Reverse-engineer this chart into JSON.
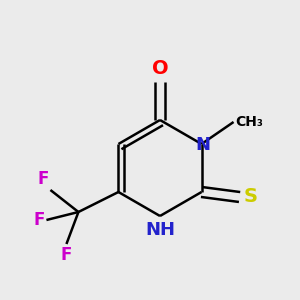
{
  "bg_color": "#ebebeb",
  "atom_colors": {
    "O": "#ff0000",
    "N": "#2222cc",
    "S": "#cccc00",
    "F": "#cc00cc",
    "C": "#000000"
  },
  "bond_lw": 1.8,
  "font_size": 11,
  "fig_size": [
    3.0,
    3.0
  ],
  "dpi": 100
}
